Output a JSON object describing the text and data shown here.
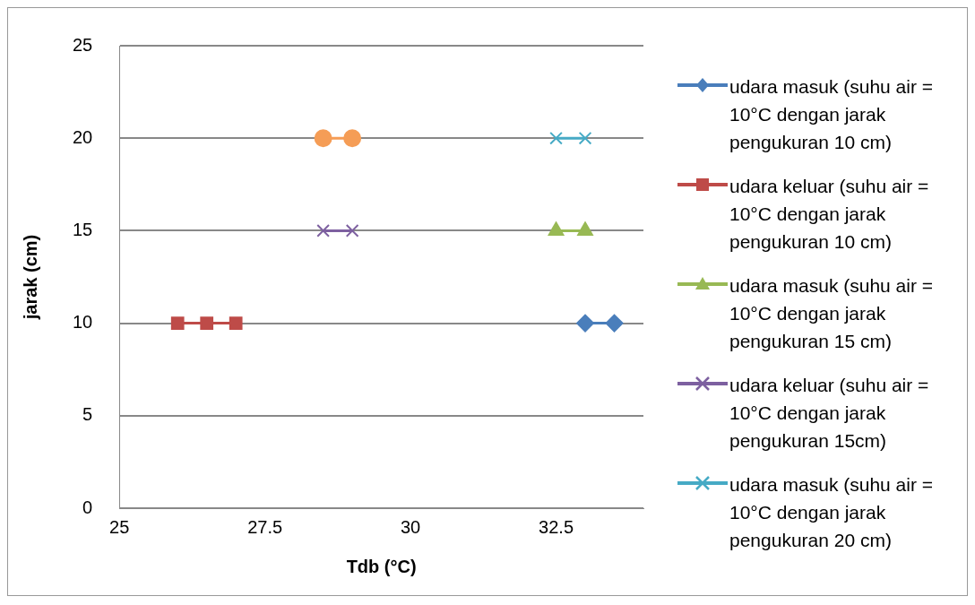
{
  "chart_data": {
    "type": "line",
    "xlabel": "Tdb (°C)",
    "ylabel": "jarak (cm)",
    "xlim": [
      25,
      34
    ],
    "xticks": [
      25,
      27.5,
      30,
      32.5
    ],
    "ylim": [
      0,
      25
    ],
    "yticks": [
      0,
      5,
      10,
      15,
      20,
      25
    ],
    "grid": "y",
    "legend": "right",
    "line_style": "solid",
    "series": [
      {
        "name": "udara masuk (suhu air = 10°C dengan jarak pengukuran 10 cm)",
        "color": "#4a7ebb",
        "marker": "diamond",
        "x": [
          33,
          33.5
        ],
        "values": [
          10,
          10
        ]
      },
      {
        "name": "udara keluar (suhu air = 10°C dengan jarak pengukuran 10 cm)",
        "color": "#be4b48",
        "marker": "square",
        "x": [
          26,
          26.5,
          27
        ],
        "values": [
          10,
          10,
          10
        ]
      },
      {
        "name": "udara masuk (suhu air = 10°C dengan jarak pengukuran 15 cm)",
        "color": "#98b954",
        "marker": "triangle",
        "x": [
          32.5,
          33
        ],
        "values": [
          15,
          15
        ]
      },
      {
        "name": "udara keluar (suhu air = 10°C dengan jarak pengukuran 15cm)",
        "color": "#7d60a0",
        "marker": "cross",
        "x": [
          28.5,
          29
        ],
        "values": [
          15,
          15
        ]
      },
      {
        "name": "udara masuk (suhu air = 10°C dengan jarak pengukuran 20 cm)",
        "color": "#46aac5",
        "marker": "cross",
        "x": [
          32.5,
          33
        ],
        "values": [
          20,
          20
        ]
      },
      {
        "color": "#f59d56",
        "marker": "circle",
        "x": [
          28.5,
          29
        ],
        "values": [
          20,
          20
        ]
      }
    ]
  }
}
